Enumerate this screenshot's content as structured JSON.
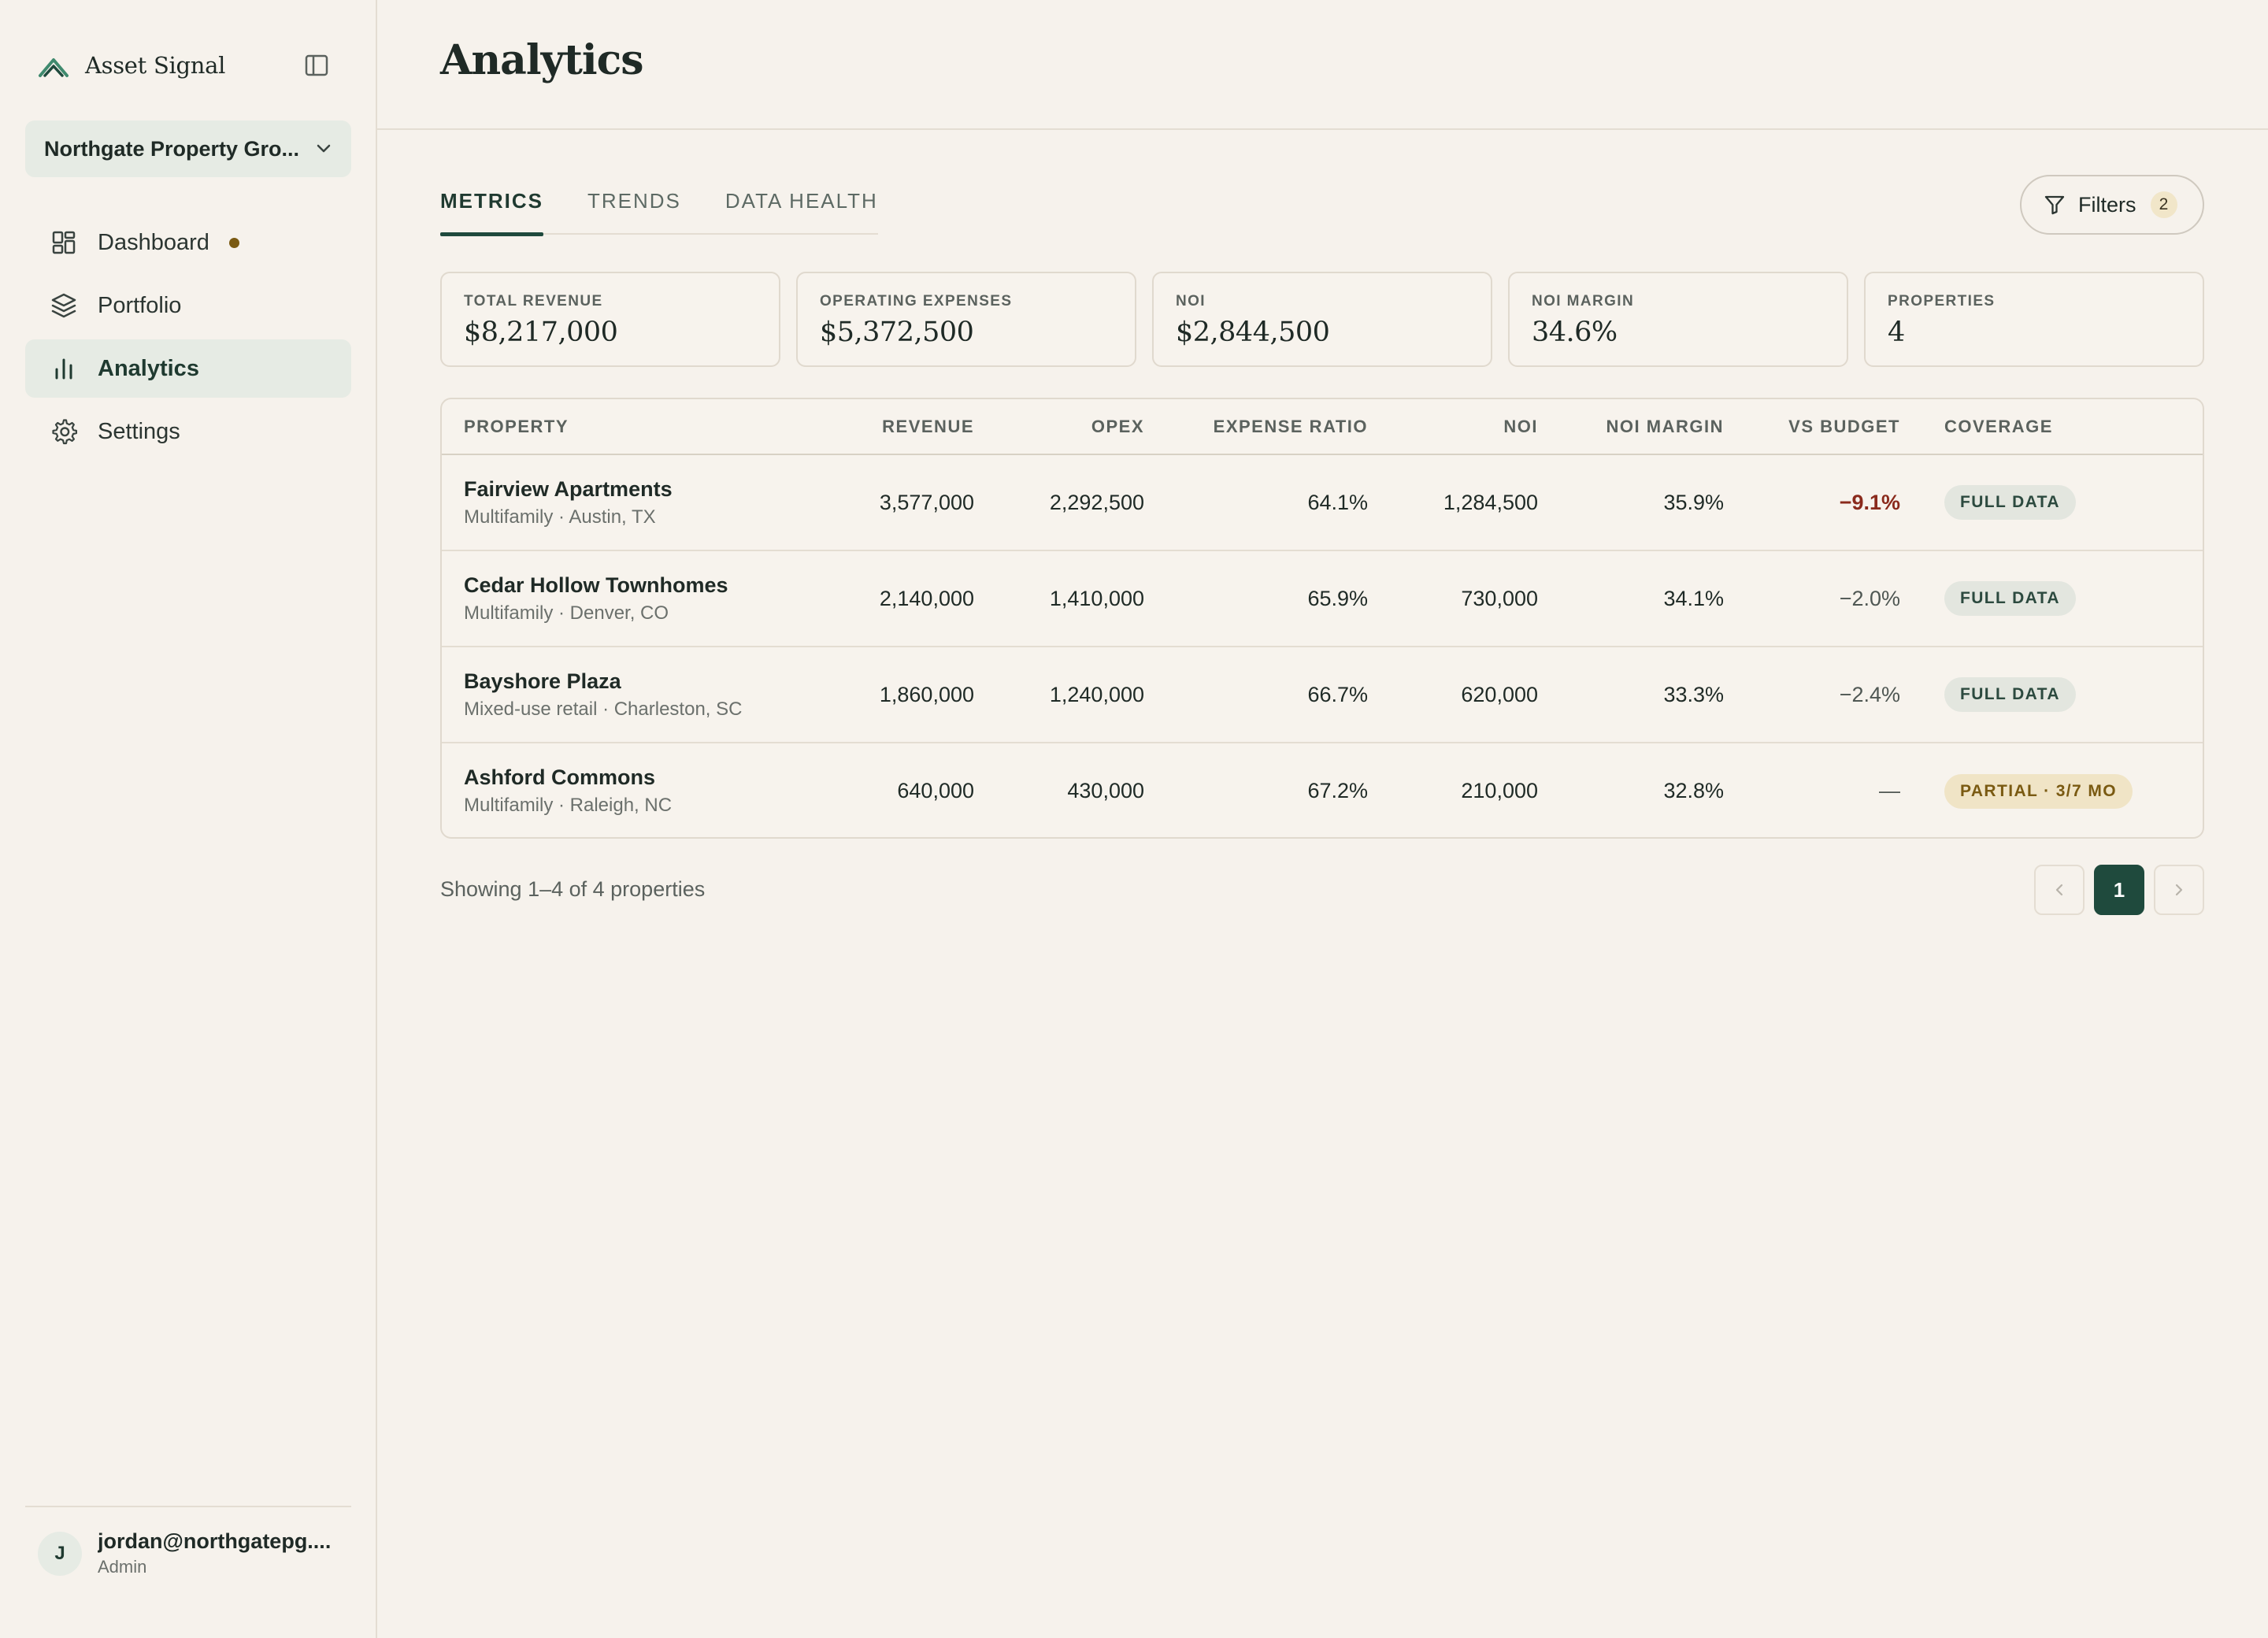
{
  "app": {
    "brand_name": "Asset Signal",
    "logo_icon": "mountain-chevrons-icon",
    "accent_color": "#1f4a3d"
  },
  "sidebar": {
    "org_name": "Northgate Property Gro...",
    "nav": [
      {
        "label": "Dashboard",
        "icon": "dashboard-icon",
        "has_notification": true
      },
      {
        "label": "Portfolio",
        "icon": "layers-icon"
      },
      {
        "label": "Analytics",
        "icon": "bar-chart-icon",
        "active": true
      },
      {
        "label": "Settings",
        "icon": "gear-icon"
      }
    ],
    "user": {
      "initial": "J",
      "email": "jordan@northgatepg....",
      "role": "Admin"
    }
  },
  "page": {
    "title": "Analytics"
  },
  "tabs": [
    {
      "label": "METRICS",
      "active": true
    },
    {
      "label": "TRENDS"
    },
    {
      "label": "DATA HEALTH"
    }
  ],
  "filters": {
    "label": "Filters",
    "count": "2"
  },
  "metrics": [
    {
      "label": "TOTAL REVENUE",
      "value": "$8,217,000"
    },
    {
      "label": "OPERATING EXPENSES",
      "value": "$5,372,500"
    },
    {
      "label": "NOI",
      "value": "$2,844,500"
    },
    {
      "label": "NOI MARGIN",
      "value": "34.6%"
    },
    {
      "label": "PROPERTIES",
      "value": "4"
    }
  ],
  "table": {
    "columns": [
      "PROPERTY",
      "REVENUE",
      "OPEX",
      "EXPENSE RATIO",
      "NOI",
      "NOI MARGIN",
      "VS BUDGET",
      "COVERAGE"
    ],
    "rows": [
      {
        "name": "Fairview Apartments",
        "sub": "Multifamily · Austin, TX",
        "revenue": "3,577,000",
        "opex": "2,292,500",
        "ratio": "64.1%",
        "noi": "1,284,500",
        "margin": "35.9%",
        "budget": "−9.1%",
        "coverage": "FULL DATA"
      },
      {
        "name": "Cedar Hollow Townhomes",
        "sub": "Multifamily · Denver, CO",
        "revenue": "2,140,000",
        "opex": "1,410,000",
        "ratio": "65.9%",
        "noi": "730,000",
        "margin": "34.1%",
        "budget": "−2.0%",
        "coverage": "FULL DATA"
      },
      {
        "name": "Bayshore Plaza",
        "sub": "Mixed-use retail · Charleston, SC",
        "revenue": "1,860,000",
        "opex": "1,240,000",
        "ratio": "66.7%",
        "noi": "620,000",
        "margin": "33.3%",
        "budget": "−2.4%",
        "coverage": "FULL DATA"
      },
      {
        "name": "Ashford Commons",
        "sub": "Multifamily · Raleigh, NC",
        "revenue": "640,000",
        "opex": "430,000",
        "ratio": "67.2%",
        "noi": "210,000",
        "margin": "32.8%",
        "budget": "—",
        "coverage": "PARTIAL · 3/7 MO"
      }
    ]
  },
  "pagination": {
    "summary": "Showing 1–4 of 4 properties",
    "current_page": "1"
  }
}
